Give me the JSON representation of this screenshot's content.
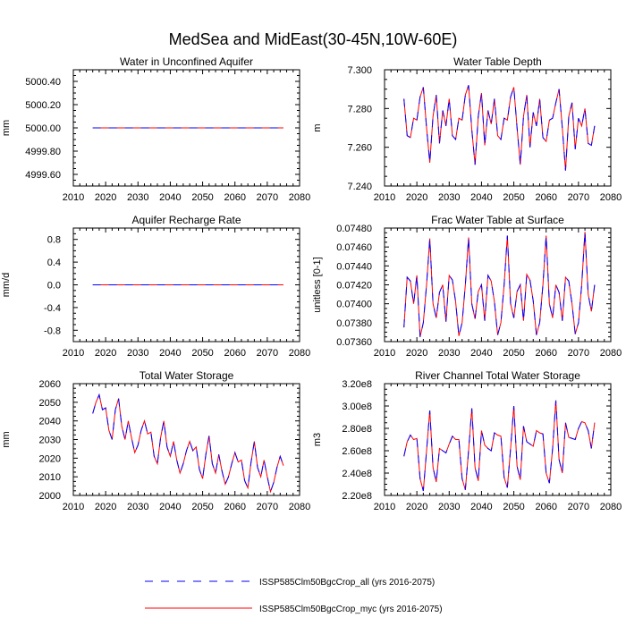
{
  "title": "MedSea and MidEast(30-45N,10W-60E)",
  "legend": [
    {
      "label": "ISSP585Clm50BgcCrop_all (yrs 2016-2075)",
      "color": "#0000ff",
      "dash": "dashed"
    },
    {
      "label": "ISSP585Clm50BgcCrop_myc (yrs 2016-2075)",
      "color": "#ff0000",
      "dash": "solid"
    }
  ],
  "chart_data": [
    {
      "type": "line",
      "title": "Water in Unconfined Aquifer",
      "ylabel": "mm",
      "xlim": [
        2010,
        2080
      ],
      "xticks": [
        2010,
        2020,
        2030,
        2040,
        2050,
        2060,
        2070,
        2080
      ],
      "ylim": [
        4999.5,
        5000.5
      ],
      "yticks": [
        4999.6,
        4999.8,
        5000.0,
        5000.2,
        5000.4
      ],
      "ytick_labels": [
        "4999.60",
        "4999.80",
        "5000.00",
        "5000.20",
        "5000.40"
      ],
      "x_start": 2016,
      "x_step": 1,
      "series": [
        {
          "values": [
            5000,
            5000,
            5000,
            5000,
            5000,
            5000,
            5000,
            5000,
            5000,
            5000,
            5000,
            5000,
            5000,
            5000,
            5000,
            5000,
            5000,
            5000,
            5000,
            5000,
            5000,
            5000,
            5000,
            5000,
            5000,
            5000,
            5000,
            5000,
            5000,
            5000,
            5000,
            5000,
            5000,
            5000,
            5000,
            5000,
            5000,
            5000,
            5000,
            5000,
            5000,
            5000,
            5000,
            5000,
            5000,
            5000,
            5000,
            5000,
            5000,
            5000,
            5000,
            5000,
            5000,
            5000,
            5000,
            5000,
            5000,
            5000,
            5000,
            5000
          ]
        },
        {
          "values": [
            5000,
            5000,
            5000,
            5000,
            5000,
            5000,
            5000,
            5000,
            5000,
            5000,
            5000,
            5000,
            5000,
            5000,
            5000,
            5000,
            5000,
            5000,
            5000,
            5000,
            5000,
            5000,
            5000,
            5000,
            5000,
            5000,
            5000,
            5000,
            5000,
            5000,
            5000,
            5000,
            5000,
            5000,
            5000,
            5000,
            5000,
            5000,
            5000,
            5000,
            5000,
            5000,
            5000,
            5000,
            5000,
            5000,
            5000,
            5000,
            5000,
            5000,
            5000,
            5000,
            5000,
            5000,
            5000,
            5000,
            5000,
            5000,
            5000,
            5000
          ]
        }
      ]
    },
    {
      "type": "line",
      "title": "Water Table Depth",
      "ylabel": "m",
      "xlim": [
        2010,
        2080
      ],
      "xticks": [
        2010,
        2020,
        2030,
        2040,
        2050,
        2060,
        2070,
        2080
      ],
      "ylim": [
        7.24,
        7.3
      ],
      "yticks": [
        7.24,
        7.26,
        7.28,
        7.3
      ],
      "ytick_labels": [
        "7.240",
        "7.260",
        "7.280",
        "7.300"
      ],
      "x_start": 2016,
      "x_step": 1,
      "series": [
        {
          "values": [
            7.285,
            7.266,
            7.265,
            7.275,
            7.274,
            7.286,
            7.291,
            7.27,
            7.252,
            7.276,
            7.287,
            7.262,
            7.279,
            7.271,
            7.285,
            7.266,
            7.264,
            7.275,
            7.274,
            7.287,
            7.292,
            7.269,
            7.251,
            7.276,
            7.288,
            7.261,
            7.279,
            7.272,
            7.285,
            7.266,
            7.264,
            7.275,
            7.274,
            7.286,
            7.291,
            7.27,
            7.251,
            7.276,
            7.287,
            7.26,
            7.278,
            7.271,
            7.285,
            7.265,
            7.263,
            7.274,
            7.275,
            7.283,
            7.29,
            7.27,
            7.248,
            7.276,
            7.283,
            7.259,
            7.275,
            7.271,
            7.28,
            7.262,
            7.261,
            7.271
          ]
        },
        {
          "values": [
            7.285,
            7.266,
            7.265,
            7.275,
            7.274,
            7.286,
            7.291,
            7.27,
            7.252,
            7.276,
            7.287,
            7.262,
            7.279,
            7.271,
            7.285,
            7.266,
            7.264,
            7.275,
            7.274,
            7.287,
            7.292,
            7.269,
            7.251,
            7.276,
            7.288,
            7.261,
            7.279,
            7.272,
            7.285,
            7.266,
            7.264,
            7.275,
            7.274,
            7.286,
            7.291,
            7.27,
            7.251,
            7.276,
            7.287,
            7.26,
            7.278,
            7.271,
            7.285,
            7.265,
            7.263,
            7.274,
            7.275,
            7.283,
            7.29,
            7.27,
            7.248,
            7.276,
            7.283,
            7.259,
            7.275,
            7.271,
            7.28,
            7.262,
            7.261,
            7.271
          ]
        }
      ]
    },
    {
      "type": "line",
      "title": "Aquifer Recharge Rate",
      "ylabel": "mm/d",
      "xlim": [
        2010,
        2080
      ],
      "xticks": [
        2010,
        2020,
        2030,
        2040,
        2050,
        2060,
        2070,
        2080
      ],
      "ylim": [
        -1.0,
        1.0
      ],
      "yticks": [
        -0.8,
        -0.4,
        0.0,
        0.4,
        0.8
      ],
      "ytick_labels": [
        "-0.8",
        "-0.4",
        "0.0",
        "0.4",
        "0.8"
      ],
      "x_start": 2016,
      "x_step": 1,
      "series": [
        {
          "values": [
            0,
            0,
            0,
            0,
            0,
            0,
            0,
            0,
            0,
            0,
            0,
            0,
            0,
            0,
            0,
            0,
            0,
            0,
            0,
            0,
            0,
            0,
            0,
            0,
            0,
            0,
            0,
            0,
            0,
            0,
            0,
            0,
            0,
            0,
            0,
            0,
            0,
            0,
            0,
            0,
            0,
            0,
            0,
            0,
            0,
            0,
            0,
            0,
            0,
            0,
            0,
            0,
            0,
            0,
            0,
            0,
            0,
            0,
            0,
            0
          ]
        },
        {
          "values": [
            0,
            0,
            0,
            0,
            0,
            0,
            0,
            0,
            0,
            0,
            0,
            0,
            0,
            0,
            0,
            0,
            0,
            0,
            0,
            0,
            0,
            0,
            0,
            0,
            0,
            0,
            0,
            0,
            0,
            0,
            0,
            0,
            0,
            0,
            0,
            0,
            0,
            0,
            0,
            0,
            0,
            0,
            0,
            0,
            0,
            0,
            0,
            0,
            0,
            0,
            0,
            0,
            0,
            0,
            0,
            0,
            0,
            0,
            0,
            0
          ]
        }
      ]
    },
    {
      "type": "line",
      "title": "Frac Water Table at Surface",
      "ylabel": "unitless [0-1]",
      "xlim": [
        2010,
        2080
      ],
      "xticks": [
        2010,
        2020,
        2030,
        2040,
        2050,
        2060,
        2070,
        2080
      ],
      "ylim": [
        0.0736,
        0.0748
      ],
      "yticks": [
        0.0736,
        0.0738,
        0.074,
        0.0742,
        0.0744,
        0.0746,
        0.0748
      ],
      "ytick_labels": [
        "0.07360",
        "0.07380",
        "0.07400",
        "0.07420",
        "0.07440",
        "0.07460",
        "0.07480"
      ],
      "x_start": 2016,
      "x_step": 1,
      "series": [
        {
          "values": [
            0.07375,
            0.07428,
            0.07424,
            0.074,
            0.0743,
            0.07365,
            0.0738,
            0.0742,
            0.07469,
            0.074,
            0.07385,
            0.07412,
            0.0742,
            0.07381,
            0.0743,
            0.07425,
            0.07402,
            0.07366,
            0.0738,
            0.0742,
            0.0747,
            0.074,
            0.07384,
            0.07413,
            0.0742,
            0.07382,
            0.0743,
            0.07424,
            0.07402,
            0.07367,
            0.0738,
            0.0742,
            0.07472,
            0.074,
            0.07385,
            0.07413,
            0.0742,
            0.07382,
            0.07431,
            0.07425,
            0.07403,
            0.07367,
            0.0738,
            0.0742,
            0.07472,
            0.074,
            0.07385,
            0.0742,
            0.07412,
            0.07382,
            0.07428,
            0.07424,
            0.074,
            0.07368,
            0.0738,
            0.0742,
            0.07476,
            0.0741,
            0.07392,
            0.0742
          ]
        },
        {
          "values": [
            0.07375,
            0.07428,
            0.07424,
            0.074,
            0.0743,
            0.07365,
            0.0738,
            0.0742,
            0.07469,
            0.074,
            0.07385,
            0.07412,
            0.0742,
            0.07381,
            0.0743,
            0.07425,
            0.07402,
            0.07366,
            0.0738,
            0.0742,
            0.0747,
            0.074,
            0.07384,
            0.07413,
            0.0742,
            0.07382,
            0.0743,
            0.07424,
            0.07402,
            0.07367,
            0.0738,
            0.0742,
            0.07472,
            0.074,
            0.07385,
            0.07413,
            0.0742,
            0.07382,
            0.07431,
            0.07425,
            0.07403,
            0.07367,
            0.0738,
            0.0742,
            0.07472,
            0.074,
            0.07385,
            0.0742,
            0.07412,
            0.07382,
            0.07428,
            0.07424,
            0.074,
            0.07368,
            0.0738,
            0.0742,
            0.07476,
            0.0741,
            0.07392,
            0.0742
          ]
        }
      ]
    },
    {
      "type": "line",
      "title": "Total Water Storage",
      "ylabel": "mm",
      "xlim": [
        2010,
        2080
      ],
      "xticks": [
        2010,
        2020,
        2030,
        2040,
        2050,
        2060,
        2070,
        2080
      ],
      "ylim": [
        2000,
        2060
      ],
      "yticks": [
        2000,
        2010,
        2020,
        2030,
        2040,
        2050,
        2060
      ],
      "ytick_labels": [
        "2000",
        "2010",
        "2020",
        "2030",
        "2040",
        "2050",
        "2060"
      ],
      "x_start": 2016,
      "x_step": 1,
      "series": [
        {
          "values": [
            2044,
            2050,
            2054,
            2046,
            2047,
            2035,
            2030,
            2046,
            2052,
            2037,
            2030,
            2040,
            2031,
            2023,
            2027,
            2035,
            2040,
            2033,
            2034,
            2021,
            2017,
            2031,
            2040,
            2026,
            2021,
            2029,
            2019,
            2012,
            2017,
            2024,
            2029,
            2024,
            2026,
            2014,
            2009,
            2022,
            2032,
            2017,
            2012,
            2022,
            2013,
            2006,
            2010,
            2017,
            2023,
            2018,
            2019,
            2008,
            2004,
            2018,
            2029,
            2015,
            2010,
            2019,
            2010,
            2002,
            2007,
            2015,
            2021,
            2016
          ]
        },
        {
          "values": [
            2044,
            2050,
            2054,
            2046,
            2047,
            2035,
            2030,
            2046,
            2052,
            2037,
            2030,
            2040,
            2031,
            2023,
            2027,
            2035,
            2040,
            2033,
            2034,
            2021,
            2017,
            2031,
            2040,
            2026,
            2021,
            2029,
            2019,
            2012,
            2017,
            2024,
            2029,
            2024,
            2026,
            2014,
            2009,
            2022,
            2032,
            2017,
            2012,
            2022,
            2013,
            2006,
            2010,
            2017,
            2023,
            2018,
            2019,
            2008,
            2004,
            2018,
            2029,
            2015,
            2010,
            2019,
            2010,
            2002,
            2007,
            2015,
            2021,
            2016
          ]
        }
      ]
    },
    {
      "type": "line",
      "title": "River Channel Total Water Storage",
      "ylabel": "m3",
      "xlim": [
        2010,
        2080
      ],
      "xticks": [
        2010,
        2020,
        2030,
        2040,
        2050,
        2060,
        2070,
        2080
      ],
      "ylim": [
        220000000.0,
        320000000.0
      ],
      "yticks": [
        220000000.0,
        240000000.0,
        260000000.0,
        280000000.0,
        300000000.0,
        320000000.0
      ],
      "ytick_labels": [
        "2.20e8",
        "2.40e8",
        "2.60e8",
        "2.80e8",
        "3.00e8",
        "3.20e8"
      ],
      "x_start": 2016,
      "x_step": 1,
      "series": [
        {
          "values": [
            255000000.0,
            268000000.0,
            274000000.0,
            270000000.0,
            271000000.0,
            235000000.0,
            224000000.0,
            260000000.0,
            296000000.0,
            245000000.0,
            232000000.0,
            262000000.0,
            260000000.0,
            258000000.0,
            266000000.0,
            273000000.0,
            270000000.0,
            270000000.0,
            235000000.0,
            225000000.0,
            260000000.0,
            298000000.0,
            245000000.0,
            233000000.0,
            278000000.0,
            265000000.0,
            262000000.0,
            260000000.0,
            276000000.0,
            274000000.0,
            273000000.0,
            236000000.0,
            227000000.0,
            262000000.0,
            300000000.0,
            246000000.0,
            234000000.0,
            282000000.0,
            268000000.0,
            266000000.0,
            264000000.0,
            278000000.0,
            276000000.0,
            275000000.0,
            240000000.0,
            231000000.0,
            262000000.0,
            305000000.0,
            252000000.0,
            240000000.0,
            285000000.0,
            272000000.0,
            271000000.0,
            270000000.0,
            280000000.0,
            286000000.0,
            285000000.0,
            278000000.0,
            262000000.0,
            285000000.0
          ]
        },
        {
          "values": [
            255000000.0,
            268000000.0,
            274000000.0,
            270000000.0,
            271000000.0,
            235000000.0,
            224000000.0,
            260000000.0,
            296000000.0,
            245000000.0,
            232000000.0,
            262000000.0,
            260000000.0,
            258000000.0,
            266000000.0,
            273000000.0,
            270000000.0,
            270000000.0,
            235000000.0,
            225000000.0,
            260000000.0,
            298000000.0,
            245000000.0,
            233000000.0,
            278000000.0,
            265000000.0,
            262000000.0,
            260000000.0,
            276000000.0,
            274000000.0,
            273000000.0,
            236000000.0,
            227000000.0,
            262000000.0,
            300000000.0,
            246000000.0,
            234000000.0,
            282000000.0,
            268000000.0,
            266000000.0,
            264000000.0,
            278000000.0,
            276000000.0,
            275000000.0,
            240000000.0,
            231000000.0,
            262000000.0,
            305000000.0,
            252000000.0,
            240000000.0,
            285000000.0,
            272000000.0,
            271000000.0,
            270000000.0,
            280000000.0,
            286000000.0,
            285000000.0,
            278000000.0,
            262000000.0,
            285000000.0
          ]
        }
      ]
    }
  ]
}
